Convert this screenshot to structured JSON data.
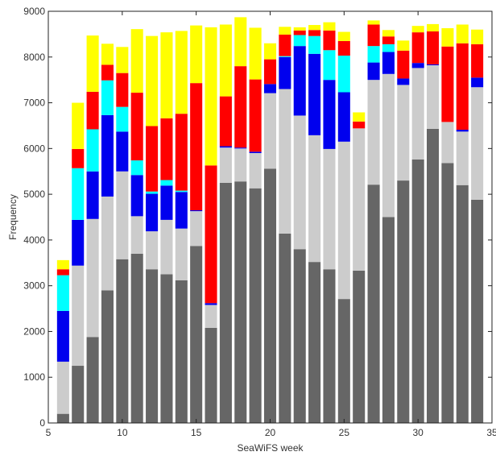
{
  "chart_data": {
    "type": "bar",
    "stacked": true,
    "title": "",
    "xlabel": "SeaWiFS week",
    "ylabel": "Frequency",
    "xlim": [
      5,
      35
    ],
    "ylim": [
      0,
      9000
    ],
    "x_ticks": [
      5,
      10,
      15,
      20,
      25,
      30,
      35
    ],
    "y_ticks": [
      0,
      1000,
      2000,
      3000,
      4000,
      5000,
      6000,
      7000,
      8000,
      9000
    ],
    "grid": false,
    "legend": "none",
    "x": [
      6,
      7,
      8,
      9,
      10,
      11,
      12,
      13,
      14,
      15,
      16,
      17,
      18,
      19,
      20,
      21,
      22,
      23,
      24,
      25,
      26,
      27,
      28,
      29,
      30,
      31,
      32,
      33,
      34
    ],
    "series": [
      {
        "color": "#666666",
        "values": [
          200,
          1250,
          1880,
          2900,
          3580,
          3700,
          3360,
          3250,
          3120,
          3870,
          2080,
          5250,
          5280,
          5130,
          5560,
          4140,
          3800,
          3520,
          3360,
          2710,
          3330,
          5210,
          4500,
          5300,
          5760,
          6430,
          5680,
          5200,
          4880
        ]
      },
      {
        "color": "#cccccc",
        "values": [
          1140,
          2190,
          2580,
          2050,
          1920,
          820,
          830,
          1190,
          1130,
          760,
          500,
          770,
          720,
          770,
          1650,
          3160,
          2920,
          2770,
          2630,
          3440,
          3110,
          2290,
          3130,
          2090,
          2000,
          1390,
          900,
          1170,
          2460
        ]
      },
      {
        "color": "#0000ee",
        "values": [
          1110,
          1000,
          1040,
          1780,
          870,
          900,
          820,
          750,
          800,
          20,
          40,
          30,
          20,
          30,
          200,
          700,
          1520,
          1780,
          1510,
          1080,
          0,
          380,
          480,
          140,
          110,
          20,
          0,
          40,
          210
        ]
      },
      {
        "color": "#00ffff",
        "values": [
          780,
          1130,
          920,
          760,
          540,
          320,
          50,
          120,
          30,
          0,
          0,
          0,
          0,
          0,
          0,
          20,
          240,
          390,
          650,
          800,
          0,
          360,
          170,
          0,
          0,
          0,
          0,
          0,
          0
        ]
      },
      {
        "color": "#ff0000",
        "values": [
          130,
          420,
          820,
          340,
          740,
          1480,
          1430,
          1350,
          1680,
          2780,
          3010,
          1090,
          1780,
          1580,
          540,
          470,
          100,
          130,
          430,
          320,
          150,
          470,
          170,
          610,
          670,
          720,
          1650,
          1890,
          730
        ]
      },
      {
        "color": "#ffff00",
        "values": [
          200,
          1010,
          1230,
          460,
          570,
          1390,
          1970,
          1880,
          1810,
          1260,
          3020,
          1570,
          1070,
          1130,
          350,
          170,
          70,
          110,
          180,
          200,
          200,
          90,
          140,
          220,
          140,
          160,
          400,
          410,
          320
        ]
      }
    ]
  }
}
